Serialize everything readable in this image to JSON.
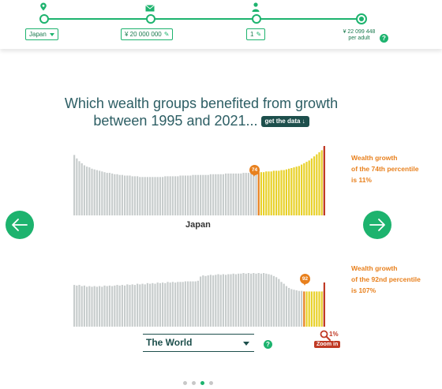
{
  "stepper": {
    "country_label": "Japan",
    "income_label": "¥ 20 000 000",
    "household_label": "1",
    "result_value": "¥ 22 099 448",
    "result_unit": "per adult",
    "help_label": "?"
  },
  "headline": {
    "line1": "Which wealth groups benefited from growth",
    "line2": "between 1995 and 2021...",
    "get_data": "get the data ↓"
  },
  "chart_top": {
    "country": "Japan",
    "marker": "74",
    "annotation": [
      "Wealth growth",
      "of the 74th percentile",
      "is 11%"
    ]
  },
  "chart_bottom": {
    "region_select": "The World",
    "help_label": "?",
    "marker": "92",
    "annotation": [
      "Wealth growth",
      "of the 92nd percentile",
      "is 107%"
    ],
    "zoom_pct": "1%",
    "zoom_label": "Zoom in"
  },
  "nav": {
    "prev": "←",
    "next": "→"
  },
  "colors": {
    "accent": "#1db36e",
    "gray_bar": "#c8cdcd",
    "highlight_bar": "#e8d12a",
    "marker": "#e8801d",
    "top_bar": "#c03a25"
  },
  "pagination": {
    "count": 4,
    "active_index": 2
  },
  "chart_data": [
    {
      "type": "bar",
      "title": "Japan",
      "highlight_from_percentile": 74,
      "values": [
        88,
        83,
        79,
        76,
        73,
        71,
        70,
        68,
        67,
        66,
        65,
        64,
        63,
        62,
        62,
        61,
        60,
        60,
        59,
        59,
        58,
        58,
        58,
        57,
        57,
        57,
        56,
        56,
        56,
        56,
        56,
        56,
        56,
        56,
        56,
        56,
        57,
        57,
        57,
        57,
        57,
        57,
        58,
        58,
        58,
        58,
        58,
        59,
        59,
        59,
        59,
        59,
        59,
        59,
        60,
        60,
        60,
        60,
        60,
        60,
        61,
        61,
        61,
        61,
        61,
        61,
        61,
        62,
        62,
        62,
        62,
        62,
        62,
        63,
        63,
        63,
        64,
        64,
        64,
        65,
        65,
        65,
        66,
        66,
        67,
        68,
        69,
        70,
        71,
        72,
        74,
        76,
        78,
        80,
        83,
        86,
        89,
        92,
        95,
        100
      ]
    },
    {
      "type": "bar",
      "title": "The World",
      "highlight_from_percentile": 92,
      "values": [
        70,
        69,
        70,
        68,
        69,
        67,
        68,
        67,
        68,
        67,
        68,
        67,
        69,
        68,
        69,
        68,
        69,
        70,
        69,
        70,
        69,
        71,
        70,
        71,
        70,
        72,
        71,
        72,
        71,
        73,
        72,
        73,
        72,
        74,
        73,
        74,
        73,
        75,
        74,
        75,
        74,
        75,
        75,
        75,
        76,
        76,
        76,
        76,
        76,
        77,
        84,
        86,
        85,
        86,
        87,
        86,
        87,
        88,
        87,
        88,
        87,
        88,
        88,
        89,
        88,
        89,
        89,
        90,
        89,
        90,
        89,
        90,
        89,
        90,
        89,
        90,
        89,
        88,
        87,
        85,
        83,
        80,
        75,
        72,
        68,
        65,
        63,
        62,
        61,
        60,
        60,
        59,
        59,
        59,
        59,
        59,
        59,
        59,
        59,
        60
      ]
    }
  ]
}
